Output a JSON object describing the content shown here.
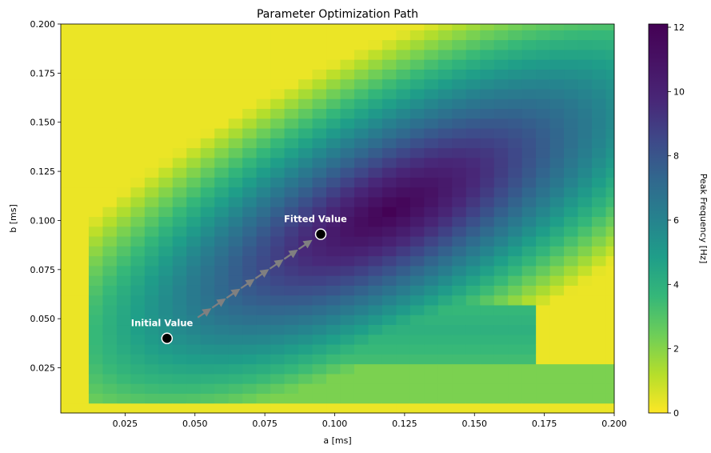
{
  "chart_data": {
    "type": "heatmap",
    "title": "Parameter Optimization Path",
    "xlabel": "a [ms]",
    "ylabel": "b [ms]",
    "xlim": [
      0.002,
      0.2
    ],
    "ylim": [
      0.002,
      0.2
    ],
    "x_ticks": [
      "0.025",
      "0.050",
      "0.075",
      "0.100",
      "0.125",
      "0.150",
      "0.175",
      "0.200"
    ],
    "x_tick_values": [
      0.025,
      0.05,
      0.075,
      0.1,
      0.125,
      0.15,
      0.175,
      0.2
    ],
    "y_ticks": [
      "0.025",
      "0.050",
      "0.075",
      "0.100",
      "0.125",
      "0.150",
      "0.175",
      "0.200"
    ],
    "y_tick_values": [
      0.025,
      0.05,
      0.075,
      0.1,
      0.125,
      0.15,
      0.175,
      0.2
    ],
    "colormap": "viridis_r",
    "colorbar": {
      "label": "Peak Frequency [Hz]",
      "range": [
        0,
        12.1
      ],
      "ticks": [
        "0",
        "2",
        "4",
        "6",
        "8",
        "10",
        "12"
      ],
      "tick_values": [
        0,
        2,
        4,
        6,
        8,
        10,
        12
      ]
    },
    "annotations": [
      {
        "label": "Initial Value",
        "a": 0.04,
        "b": 0.04
      },
      {
        "label": "Fitted Value",
        "a": 0.095,
        "b": 0.093
      }
    ],
    "path_color": "#808080",
    "marker_color": "#000000"
  }
}
